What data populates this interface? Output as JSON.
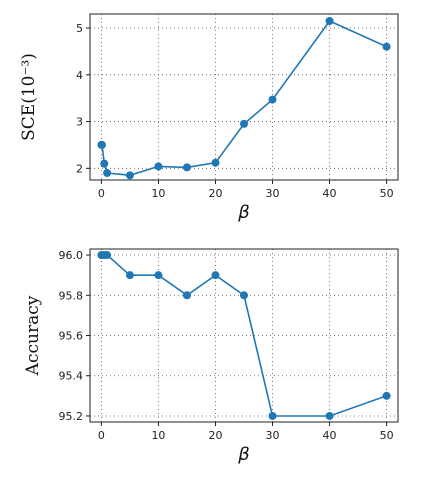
{
  "chart_data": [
    {
      "type": "line",
      "xlabel": "β",
      "ylabel": "SCE(10⁻³)",
      "x": [
        0,
        0.1,
        0.5,
        1,
        5,
        10,
        15,
        20,
        25,
        30,
        40,
        50
      ],
      "series": [
        {
          "values": [
            2.5,
            2.5,
            2.1,
            1.9,
            1.85,
            2.04,
            2.02,
            2.12,
            2.95,
            3.47,
            5.15,
            4.6
          ]
        }
      ],
      "xlim": [
        -2,
        52
      ],
      "ylim": [
        1.75,
        5.3
      ],
      "xticks": [
        0,
        10,
        20,
        30,
        40,
        50
      ],
      "yticks": [
        2,
        3,
        4,
        5
      ],
      "grid": true,
      "color": "#1f77b4"
    },
    {
      "type": "line",
      "xlabel": "β",
      "ylabel": "Accuracy",
      "x": [
        0,
        0.5,
        1,
        5,
        10,
        15,
        20,
        25,
        30,
        40,
        50
      ],
      "series": [
        {
          "values": [
            96.0,
            96.0,
            96.0,
            95.9,
            95.9,
            95.8,
            95.9,
            95.8,
            95.2,
            95.2,
            95.3
          ]
        }
      ],
      "xlim": [
        -2,
        52
      ],
      "ylim": [
        95.17,
        96.03
      ],
      "xticks": [
        0,
        10,
        20,
        30,
        40,
        50
      ],
      "yticks": [
        95.2,
        95.4,
        95.6,
        95.8,
        96.0
      ],
      "ytick_labels": [
        "95.2",
        "95.4",
        "95.6",
        "95.8",
        "96.0"
      ],
      "grid": true,
      "color": "#1f77b4"
    }
  ]
}
